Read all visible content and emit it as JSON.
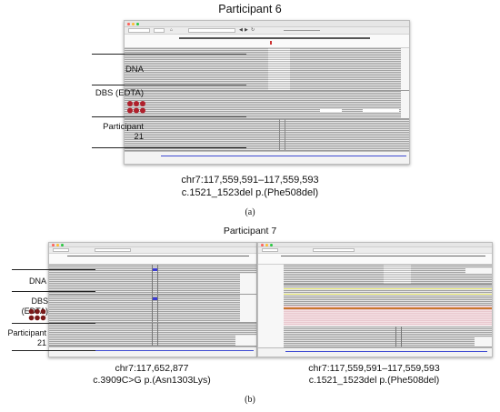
{
  "panel_a": {
    "title": "Participant 6",
    "labels": {
      "dna": "DNA",
      "dbs": "DBS (EDTA)",
      "participant_line1": "Participant",
      "participant_line2": "21"
    },
    "caption_line1": "chr7:117,559,591–117,559,593",
    "caption_line2": "c.1521_1523del p.(Phe508del)",
    "figure_label": "(a)",
    "dbs_dot_color": "#b0202c"
  },
  "panel_b": {
    "title": "Participant 7",
    "labels": {
      "dna": "DNA",
      "dbs": "DBS (EDTA)",
      "participant_line1": "Participant",
      "participant_line2": "21"
    },
    "left_caption_line1": "chr7:117,652,877",
    "left_caption_line2": "c.3909C>G p.(Asn1303Lys)",
    "right_caption_line1": "chr7:117,559,591–117,559,593",
    "right_caption_line2": "c.1521_1523del p.(Phe508del)",
    "figure_label": "(b)",
    "dbs_dot_color": "#7a1a1a"
  },
  "colors": {
    "variant_mark": "#3b3bd6",
    "gene_track": "#3e4bd2",
    "highlight_row": "#e9c9cf",
    "yellow_row": "#e6e66e",
    "orange_row": "#c9752c"
  },
  "icons": [
    "close-dot-icon",
    "minimize-dot-icon",
    "zoom-dot-icon",
    "home-icon",
    "back-icon",
    "forward-icon",
    "refresh-icon",
    "zoom-slider-icon"
  ]
}
